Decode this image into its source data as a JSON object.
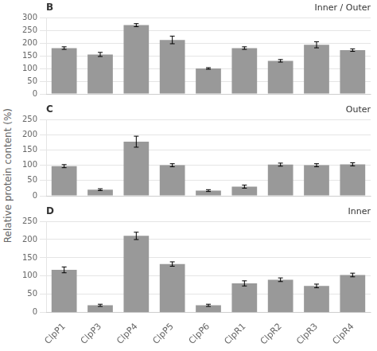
{
  "chart_data": [
    {
      "type": "bar",
      "title": "B",
      "annotation": "Inner / Outer",
      "categories": [
        "ClpP1",
        "ClpP3",
        "ClpP4",
        "ClpP5",
        "ClpP6",
        "ClpR1",
        "ClpR2",
        "ClpR3",
        "ClpR4"
      ],
      "values": [
        180,
        155,
        270,
        212,
        100,
        180,
        130,
        193,
        172
      ],
      "errors": [
        5,
        8,
        6,
        15,
        3,
        5,
        5,
        12,
        5
      ],
      "color": "#999999",
      "ylim": [
        0,
        300
      ],
      "yticks": [
        0,
        50,
        100,
        150,
        200,
        250,
        300
      ],
      "grid": true,
      "tick_labels": "y"
    },
    {
      "type": "bar",
      "title": "C",
      "annotation": "Outer",
      "ylabel": "Relative protein content (%)",
      "categories": [
        "ClpP1",
        "ClpP3",
        "ClpP4",
        "ClpP5",
        "ClpP6",
        "ClpR1",
        "ClpR2",
        "ClpR3",
        "ClpR4"
      ],
      "values": [
        97,
        20,
        177,
        100,
        17,
        30,
        102,
        100,
        103
      ],
      "errors": [
        5,
        3,
        18,
        5,
        3,
        5,
        5,
        5,
        5
      ],
      "color": "#999999",
      "ylim": [
        0,
        250
      ],
      "yticks": [
        0,
        50,
        100,
        150,
        200,
        250
      ],
      "grid": true,
      "tick_labels": "y"
    },
    {
      "type": "bar",
      "title": "D",
      "annotation": "Inner",
      "categories": [
        "ClpP1",
        "ClpP3",
        "ClpP4",
        "ClpP5",
        "ClpP6",
        "ClpR1",
        "ClpR2",
        "ClpR3",
        "ClpR4"
      ],
      "values": [
        117,
        20,
        210,
        133,
        20,
        80,
        90,
        73,
        103
      ],
      "errors": [
        8,
        3,
        10,
        6,
        3,
        7,
        5,
        5,
        5
      ],
      "color": "#999999",
      "ylim": [
        0,
        250
      ],
      "yticks": [
        0,
        50,
        100,
        150,
        200,
        250
      ],
      "grid": true
    }
  ]
}
